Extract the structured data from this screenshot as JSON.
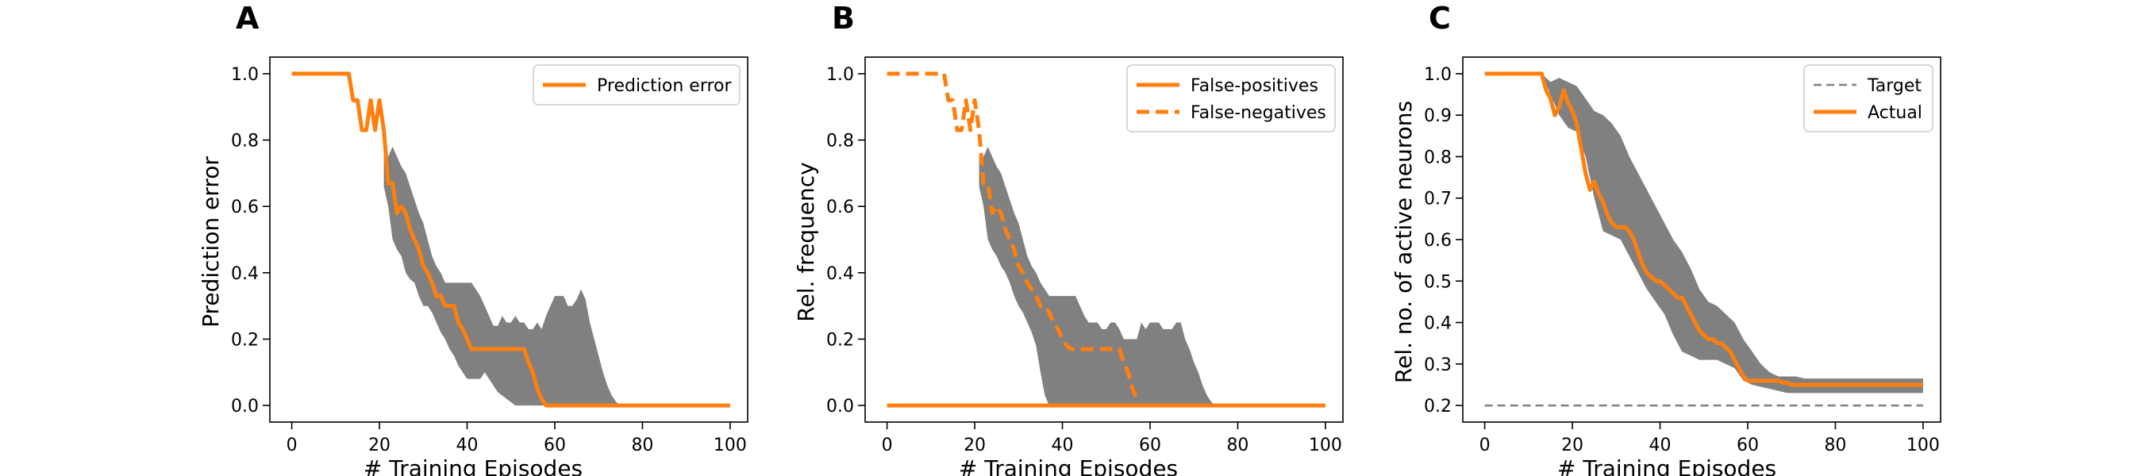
{
  "chart_data": [
    {
      "panel": "A",
      "type": "line",
      "xlabel": "# Training Episodes",
      "ylabel": "Prediction error",
      "xlim": [
        -5,
        104
      ],
      "ylim": [
        -0.05,
        1.05
      ],
      "xticks": [
        0,
        20,
        40,
        60,
        80,
        100
      ],
      "yticks": [
        "0.0",
        "0.2",
        "0.4",
        "0.6",
        "0.8",
        "1.0"
      ],
      "legend_position": "top-right",
      "series": [
        {
          "name": "Prediction error",
          "color": "#ff7f0e",
          "style": "solid",
          "x": [
            0,
            13,
            14,
            15,
            16,
            17,
            18,
            19,
            20,
            21,
            22,
            23,
            24,
            25,
            26,
            27,
            28,
            29,
            30,
            31,
            32,
            33,
            34,
            35,
            36,
            37,
            38,
            39,
            40,
            41,
            42,
            43,
            44,
            45,
            46,
            47,
            48,
            49,
            50,
            51,
            52,
            53,
            54,
            55,
            56,
            57,
            58,
            100
          ],
          "y": [
            1.0,
            1.0,
            0.92,
            0.92,
            0.83,
            0.83,
            0.92,
            0.83,
            0.92,
            0.83,
            0.67,
            0.67,
            0.58,
            0.6,
            0.58,
            0.53,
            0.5,
            0.47,
            0.42,
            0.4,
            0.37,
            0.33,
            0.33,
            0.3,
            0.3,
            0.3,
            0.25,
            0.23,
            0.2,
            0.17,
            0.17,
            0.17,
            0.17,
            0.17,
            0.17,
            0.17,
            0.17,
            0.17,
            0.17,
            0.17,
            0.17,
            0.17,
            0.13,
            0.1,
            0.05,
            0.02,
            0.0,
            0.0
          ]
        }
      ],
      "band": {
        "color": "#808080",
        "x": [
          21,
          22,
          23,
          24,
          25,
          26,
          27,
          28,
          29,
          30,
          31,
          32,
          33,
          34,
          35,
          36,
          37,
          38,
          39,
          40,
          41,
          42,
          43,
          44,
          45,
          46,
          47,
          48,
          49,
          50,
          51,
          52,
          53,
          54,
          55,
          56,
          57,
          58,
          59,
          60,
          61,
          62,
          63,
          64,
          65,
          66,
          67,
          68,
          69,
          70,
          71,
          72,
          73,
          74,
          75,
          100
        ],
        "upper": [
          0.75,
          0.75,
          0.78,
          0.75,
          0.72,
          0.7,
          0.66,
          0.62,
          0.58,
          0.55,
          0.5,
          0.45,
          0.42,
          0.4,
          0.37,
          0.37,
          0.37,
          0.37,
          0.37,
          0.37,
          0.37,
          0.35,
          0.33,
          0.3,
          0.27,
          0.24,
          0.24,
          0.27,
          0.25,
          0.25,
          0.27,
          0.25,
          0.25,
          0.23,
          0.23,
          0.25,
          0.23,
          0.27,
          0.3,
          0.33,
          0.33,
          0.33,
          0.3,
          0.3,
          0.32,
          0.35,
          0.32,
          0.25,
          0.2,
          0.15,
          0.1,
          0.06,
          0.03,
          0.01,
          0.0,
          0.0
        ],
        "lower": [
          0.66,
          0.6,
          0.5,
          0.47,
          0.45,
          0.4,
          0.38,
          0.37,
          0.33,
          0.3,
          0.3,
          0.28,
          0.25,
          0.22,
          0.2,
          0.17,
          0.15,
          0.12,
          0.1,
          0.08,
          0.08,
          0.08,
          0.08,
          0.1,
          0.08,
          0.06,
          0.04,
          0.03,
          0.02,
          0.01,
          0.0,
          0.0,
          0.0,
          0.0,
          0.0,
          0.0,
          0.0,
          0.0,
          0.0,
          0.0,
          0.0,
          0.0,
          0.0,
          0.0,
          0.0,
          0.0,
          0.0,
          0.0,
          0.0,
          0.0,
          0.0,
          0.0,
          0.0,
          0.0,
          0.0,
          0.0
        ]
      }
    },
    {
      "panel": "B",
      "type": "line",
      "xlabel": "# Training Episodes",
      "ylabel": "Rel. frequency",
      "xlim": [
        -5,
        104
      ],
      "ylim": [
        -0.05,
        1.05
      ],
      "xticks": [
        0,
        20,
        40,
        60,
        80,
        100
      ],
      "yticks": [
        "0.0",
        "0.2",
        "0.4",
        "0.6",
        "0.8",
        "1.0"
      ],
      "legend_position": "top-right",
      "series": [
        {
          "name": "False-positives",
          "color": "#ff7f0e",
          "style": "solid",
          "x": [
            0,
            100
          ],
          "y": [
            0.0,
            0.0
          ]
        },
        {
          "name": "False-negatives",
          "color": "#ff7f0e",
          "style": "dashed",
          "x": [
            0,
            13,
            14,
            15,
            16,
            17,
            18,
            19,
            20,
            21,
            22,
            23,
            24,
            25,
            26,
            27,
            28,
            29,
            30,
            31,
            32,
            33,
            34,
            35,
            36,
            37,
            38,
            39,
            40,
            41,
            42,
            43,
            44,
            45,
            46,
            47,
            48,
            49,
            50,
            51,
            52,
            53,
            54,
            55,
            56,
            57
          ],
          "y": [
            1.0,
            1.0,
            0.92,
            0.92,
            0.83,
            0.83,
            0.92,
            0.83,
            0.92,
            0.83,
            0.67,
            0.67,
            0.58,
            0.6,
            0.58,
            0.53,
            0.5,
            0.47,
            0.42,
            0.4,
            0.37,
            0.35,
            0.33,
            0.3,
            0.3,
            0.28,
            0.25,
            0.23,
            0.2,
            0.18,
            0.17,
            0.17,
            0.17,
            0.17,
            0.17,
            0.17,
            0.17,
            0.17,
            0.17,
            0.17,
            0.17,
            0.17,
            0.13,
            0.1,
            0.05,
            0.02
          ]
        }
      ],
      "band": {
        "color": "#808080",
        "x": [
          21,
          22,
          23,
          24,
          25,
          26,
          27,
          28,
          29,
          30,
          31,
          32,
          33,
          34,
          35,
          36,
          37,
          38,
          39,
          40,
          41,
          42,
          43,
          44,
          45,
          46,
          47,
          48,
          49,
          50,
          51,
          52,
          53,
          54,
          55,
          56,
          57,
          58,
          59,
          60,
          61,
          62,
          63,
          64,
          65,
          66,
          67,
          68,
          69,
          70,
          71,
          72,
          73,
          74,
          75,
          100
        ],
        "upper": [
          0.75,
          0.75,
          0.78,
          0.75,
          0.72,
          0.7,
          0.66,
          0.62,
          0.58,
          0.55,
          0.5,
          0.45,
          0.42,
          0.4,
          0.37,
          0.35,
          0.33,
          0.33,
          0.33,
          0.33,
          0.33,
          0.33,
          0.33,
          0.3,
          0.27,
          0.25,
          0.25,
          0.25,
          0.23,
          0.23,
          0.25,
          0.25,
          0.23,
          0.2,
          0.2,
          0.2,
          0.2,
          0.25,
          0.23,
          0.25,
          0.25,
          0.25,
          0.23,
          0.23,
          0.23,
          0.25,
          0.25,
          0.2,
          0.17,
          0.13,
          0.1,
          0.06,
          0.03,
          0.01,
          0.0,
          0.0
        ],
        "lower": [
          0.66,
          0.6,
          0.5,
          0.47,
          0.45,
          0.42,
          0.4,
          0.37,
          0.33,
          0.3,
          0.28,
          0.25,
          0.22,
          0.18,
          0.1,
          0.03,
          0.0,
          0.0,
          0.0,
          0.0,
          0.0,
          0.0,
          0.0,
          0.0,
          0.0,
          0.0,
          0.0,
          0.0,
          0.0,
          0.0,
          0.0,
          0.0,
          0.0,
          0.0,
          0.0,
          0.0,
          0.0,
          0.0,
          0.0,
          0.0,
          0.0,
          0.0,
          0.0,
          0.0,
          0.0,
          0.0,
          0.0,
          0.0,
          0.0,
          0.0,
          0.0,
          0.0,
          0.0,
          0.0,
          0.0,
          0.0
        ]
      }
    },
    {
      "panel": "C",
      "type": "line",
      "xlabel": "# Training Episodes",
      "ylabel": "Rel. no. of active neurons",
      "xlim": [
        -5,
        104
      ],
      "ylim": [
        0.16,
        1.04
      ],
      "xticks": [
        0,
        20,
        40,
        60,
        80,
        100
      ],
      "yticks": [
        "0.2",
        "0.3",
        "0.4",
        "0.5",
        "0.6",
        "0.7",
        "0.8",
        "0.9",
        "1.0"
      ],
      "legend_position": "top-right",
      "series": [
        {
          "name": "Target",
          "color": "#808080",
          "style": "dashed",
          "x": [
            0,
            100
          ],
          "y": [
            0.2,
            0.2
          ]
        },
        {
          "name": "Actual",
          "color": "#ff7f0e",
          "style": "solid",
          "x": [
            0,
            13,
            14,
            15,
            16,
            17,
            18,
            19,
            20,
            21,
            22,
            23,
            24,
            25,
            26,
            27,
            28,
            29,
            30,
            31,
            32,
            33,
            34,
            35,
            36,
            37,
            38,
            39,
            40,
            41,
            42,
            43,
            44,
            45,
            46,
            47,
            48,
            49,
            50,
            51,
            52,
            53,
            54,
            55,
            56,
            57,
            58,
            59,
            60,
            61,
            62,
            63,
            64,
            65,
            66,
            67,
            68,
            69,
            70,
            71,
            72,
            73,
            74,
            75,
            76,
            100
          ],
          "y": [
            1.0,
            1.0,
            0.96,
            0.94,
            0.9,
            0.92,
            0.96,
            0.93,
            0.91,
            0.88,
            0.82,
            0.76,
            0.72,
            0.74,
            0.71,
            0.69,
            0.66,
            0.64,
            0.63,
            0.63,
            0.63,
            0.62,
            0.6,
            0.57,
            0.54,
            0.52,
            0.51,
            0.5,
            0.5,
            0.49,
            0.48,
            0.47,
            0.46,
            0.46,
            0.44,
            0.42,
            0.4,
            0.38,
            0.37,
            0.36,
            0.36,
            0.35,
            0.35,
            0.34,
            0.33,
            0.31,
            0.29,
            0.27,
            0.26,
            0.26,
            0.26,
            0.26,
            0.26,
            0.26,
            0.26,
            0.26,
            0.255,
            0.255,
            0.25,
            0.25,
            0.25,
            0.25,
            0.25,
            0.25,
            0.25,
            0.25
          ]
        }
      ],
      "band": {
        "color": "#808080",
        "x": [
          13,
          15,
          17,
          19,
          21,
          23,
          25,
          27,
          29,
          31,
          33,
          35,
          37,
          39,
          41,
          43,
          45,
          47,
          49,
          51,
          53,
          55,
          57,
          59,
          61,
          63,
          65,
          67,
          69,
          71,
          73,
          75,
          77,
          100
        ],
        "upper": [
          1.0,
          0.98,
          0.99,
          0.98,
          0.97,
          0.94,
          0.91,
          0.9,
          0.88,
          0.85,
          0.8,
          0.76,
          0.72,
          0.68,
          0.64,
          0.6,
          0.57,
          0.53,
          0.48,
          0.45,
          0.44,
          0.42,
          0.4,
          0.36,
          0.33,
          0.3,
          0.28,
          0.27,
          0.27,
          0.27,
          0.265,
          0.265,
          0.265,
          0.265
        ],
        "lower": [
          1.0,
          0.95,
          0.9,
          0.87,
          0.86,
          0.8,
          0.7,
          0.62,
          0.61,
          0.6,
          0.56,
          0.52,
          0.48,
          0.45,
          0.42,
          0.37,
          0.33,
          0.32,
          0.31,
          0.31,
          0.31,
          0.3,
          0.29,
          0.26,
          0.25,
          0.245,
          0.24,
          0.235,
          0.23,
          0.23,
          0.23,
          0.23,
          0.23,
          0.23
        ]
      }
    }
  ]
}
